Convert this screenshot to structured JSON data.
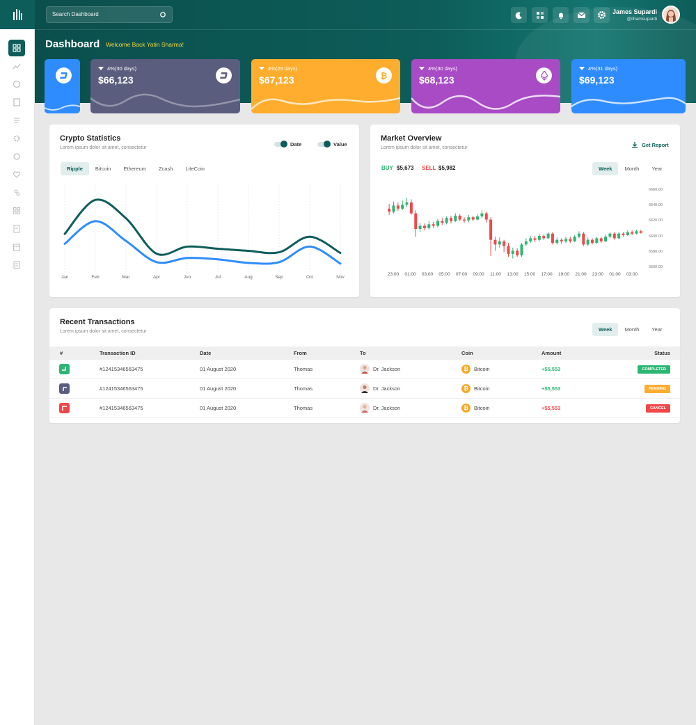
{
  "search": {
    "placeholder": "Search Dashboard"
  },
  "user": {
    "name": "James Supardi",
    "handle": "@ilhamsupardi"
  },
  "page": {
    "title": "Dashboard",
    "welcome": "Welcome Back Yatin Sharma!"
  },
  "colors": {
    "brand": "#0d5d5a",
    "blue": "#2f8cff",
    "slate": "#5b5d7e",
    "orange": "#ffad2e",
    "purple": "#a84bc4",
    "green": "#2bb673",
    "red": "#f0484a"
  },
  "stats": [
    {
      "pct": "4%(30 days)",
      "value": "$66,123",
      "icon": "dash-icon"
    },
    {
      "pct": "4%(29 days)",
      "value": "$67,123",
      "icon": "bitcoin-icon"
    },
    {
      "pct": "4%(30 days)",
      "value": "$68,123",
      "icon": "ethereum-icon"
    },
    {
      "pct": "4%(31 days)",
      "value": "$69,123",
      "icon": "none"
    }
  ],
  "crypto": {
    "title": "Crypto Statistics",
    "subtitle": "Lorem ipsum dolor sit amet, consectetur",
    "toggles": [
      "Date",
      "Value"
    ],
    "tabs": [
      "Ripple",
      "Bitcoin",
      "Ethereum",
      "Zcash",
      "LiteCoin"
    ],
    "months": [
      "Jan",
      "Feb",
      "Mar",
      "Apr",
      "Jun",
      "Jul",
      "Aug",
      "Sep",
      "Oct",
      "Nov"
    ]
  },
  "market": {
    "title": "Market Overview",
    "subtitle": "Lorem ipsum dolor sit amet, consectetur",
    "report": "Get Report",
    "buy_label": "BUY",
    "buy_value": "$5,673",
    "sell_label": "SELL",
    "sell_value": "$5,982",
    "tabs": [
      "Week",
      "Month",
      "Year"
    ],
    "times": [
      "23:00",
      "01:00",
      "03:00",
      "05:00",
      "07:00",
      "09:00",
      "11:00",
      "13:00",
      "15:00",
      "17:00",
      "19:00",
      "21:00",
      "23:00",
      "01:00",
      "03:00"
    ],
    "prices": [
      "6660.00",
      "6640.00",
      "6620.00",
      "6600.00",
      "6580.00",
      "6560.00"
    ]
  },
  "transactions": {
    "title": "Recent Transactions",
    "subtitle": "Lorem ipsum dolor sit amet, consectetur",
    "tabs": [
      "Week",
      "Month",
      "Year"
    ],
    "headers": [
      "#",
      "Transaction ID",
      "Date",
      "From",
      "To",
      "Coin",
      "Amount",
      "Status"
    ],
    "rows": [
      {
        "id": "#12415346563475",
        "date": "01 August 2020",
        "from": "Thomas",
        "to": "Dr. Jackson",
        "coin": "Bitcoin",
        "amount": "+$5,553",
        "status": "COMPLETED"
      },
      {
        "id": "#12415346563475",
        "date": "01 August 2020",
        "from": "Thomas",
        "to": "Dr. Jackson",
        "coin": "Bitcoin",
        "amount": "+$5,553",
        "status": "PENDING"
      },
      {
        "id": "#12415346563475",
        "date": "01 August 2020",
        "from": "Thomas",
        "to": "Dr. Jackson",
        "coin": "Bitcoin",
        "amount": "+$5,553",
        "status": "CANCEL"
      }
    ]
  },
  "chart_data": [
    {
      "type": "line",
      "categories": [
        "Jan",
        "Feb",
        "Mar",
        "Apr",
        "Jun",
        "Jul",
        "Aug",
        "Sep",
        "Oct",
        "Nov"
      ],
      "series": [
        {
          "name": "Date",
          "values": [
            52,
            100,
            74,
            24,
            34,
            31,
            28,
            26,
            48,
            25
          ]
        },
        {
          "name": "Value",
          "values": [
            38,
            70,
            42,
            12,
            18,
            16,
            11,
            12,
            34,
            10
          ]
        }
      ],
      "ylim": [
        0,
        120
      ]
    },
    {
      "type": "candlestick",
      "ylim": [
        6560,
        6660
      ],
      "candles": [
        [
          6636,
          6632,
          6642,
          6628
        ],
        [
          6632,
          6640,
          6645,
          6630
        ],
        [
          6640,
          6636,
          6644,
          6633
        ],
        [
          6636,
          6641,
          6646,
          6634
        ],
        [
          6641,
          6644,
          6650,
          6638
        ],
        [
          6644,
          6630,
          6648,
          6628
        ],
        [
          6630,
          6610,
          6634,
          6600
        ],
        [
          6610,
          6614,
          6618,
          6606
        ],
        [
          6614,
          6611,
          6617,
          6608
        ],
        [
          6611,
          6616,
          6620,
          6609
        ],
        [
          6616,
          6614,
          6619,
          6611
        ],
        [
          6614,
          6620,
          6623,
          6612
        ],
        [
          6620,
          6618,
          6624,
          6615
        ],
        [
          6618,
          6624,
          6626,
          6616
        ],
        [
          6624,
          6620,
          6627,
          6617
        ],
        [
          6620,
          6627,
          6630,
          6619
        ],
        [
          6627,
          6622,
          6629,
          6620
        ],
        [
          6622,
          6621,
          6625,
          6618
        ],
        [
          6621,
          6625,
          6628,
          6619
        ],
        [
          6625,
          6622,
          6627,
          6620
        ],
        [
          6622,
          6626,
          6629,
          6621
        ],
        [
          6626,
          6630,
          6634,
          6624
        ],
        [
          6630,
          6622,
          6632,
          6618
        ],
        [
          6622,
          6596,
          6625,
          6575
        ],
        [
          6596,
          6590,
          6600,
          6582
        ],
        [
          6590,
          6594,
          6599,
          6586
        ],
        [
          6594,
          6588,
          6596,
          6580
        ],
        [
          6588,
          6578,
          6592,
          6574
        ],
        [
          6578,
          6582,
          6586,
          6572
        ],
        [
          6582,
          6576,
          6585,
          6574
        ],
        [
          6576,
          6590,
          6592,
          6574
        ],
        [
          6590,
          6594,
          6598,
          6588
        ],
        [
          6594,
          6598,
          6601,
          6592
        ],
        [
          6598,
          6596,
          6601,
          6593
        ],
        [
          6596,
          6601,
          6604,
          6594
        ],
        [
          6601,
          6598,
          6603,
          6596
        ],
        [
          6598,
          6604,
          6606,
          6597
        ],
        [
          6604,
          6592,
          6606,
          6590
        ],
        [
          6592,
          6596,
          6599,
          6590
        ],
        [
          6596,
          6594,
          6598,
          6591
        ],
        [
          6594,
          6597,
          6600,
          6592
        ],
        [
          6597,
          6594,
          6600,
          6592
        ],
        [
          6594,
          6600,
          6602,
          6593
        ],
        [
          6600,
          6604,
          6607,
          6598
        ],
        [
          6604,
          6590,
          6606,
          6588
        ],
        [
          6590,
          6596,
          6599,
          6588
        ],
        [
          6596,
          6592,
          6598,
          6590
        ],
        [
          6592,
          6598,
          6600,
          6591
        ],
        [
          6598,
          6594,
          6600,
          6592
        ],
        [
          6594,
          6600,
          6603,
          6593
        ],
        [
          6600,
          6604,
          6606,
          6598
        ],
        [
          6604,
          6598,
          6606,
          6596
        ],
        [
          6598,
          6604,
          6606,
          6597
        ],
        [
          6604,
          6602,
          6606,
          6600
        ],
        [
          6602,
          6606,
          6608,
          6601
        ],
        [
          6606,
          6604,
          6608,
          6602
        ],
        [
          6604,
          6607,
          6609,
          6603
        ],
        [
          6607,
          6605,
          6609,
          6604
        ]
      ]
    }
  ]
}
